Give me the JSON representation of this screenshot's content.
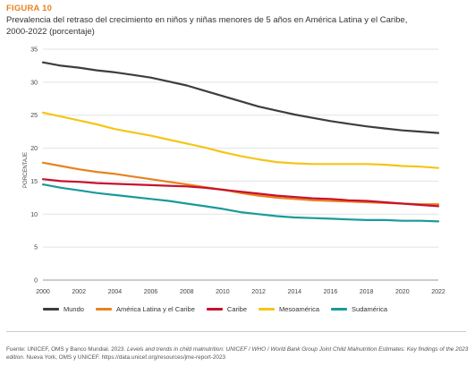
{
  "figure": {
    "label": "FIGURA 10",
    "title": "Prevalencia del retraso del crecimiento en niños y niñas menores de 5 años en América Latina y el Caribe, 2000-2022 (porcentaje)"
  },
  "source": {
    "prefix": "Fuente: UNICEF, OMS y Banco Mundial. 2023. ",
    "title_italic": "Levels and trends in child malnutrition: UNICEF / WHO / World Bank Group Joint Child Malnutrition Estimates: Key findings of the 2023 edition",
    "suffix": ". Nueva York, OMS y UNICEF. https://data.unicef.org/resources/jme-report-2023"
  },
  "chart_data": {
    "type": "line",
    "title": "",
    "xlabel": "",
    "ylabel": "PORCENTAJE",
    "xlim": [
      2000,
      2022
    ],
    "ylim": [
      0,
      35
    ],
    "x_ticks": [
      "2000",
      "2002",
      "2004",
      "2006",
      "2008",
      "2010",
      "2012",
      "2014",
      "2016",
      "2018",
      "2020",
      "2022"
    ],
    "y_ticks": [
      "0",
      "5",
      "10",
      "15",
      "20",
      "25",
      "30",
      "35"
    ],
    "grid": true,
    "legend_position": "bottom",
    "x": [
      2000,
      2001,
      2002,
      2003,
      2004,
      2005,
      2006,
      2007,
      2008,
      2009,
      2010,
      2011,
      2012,
      2013,
      2014,
      2015,
      2016,
      2017,
      2018,
      2019,
      2020,
      2021,
      2022
    ],
    "series": [
      {
        "name": "Mundo",
        "color": "#3d3d3d",
        "values": [
          33.0,
          32.5,
          32.2,
          31.8,
          31.5,
          31.1,
          30.7,
          30.1,
          29.5,
          28.7,
          27.9,
          27.1,
          26.3,
          25.7,
          25.1,
          24.6,
          24.1,
          23.7,
          23.3,
          23.0,
          22.7,
          22.5,
          22.3
        ]
      },
      {
        "name": "América Latina y el Caribe",
        "color": "#e8821e",
        "values": [
          17.8,
          17.3,
          16.8,
          16.4,
          16.1,
          15.7,
          15.3,
          14.9,
          14.5,
          14.1,
          13.7,
          13.2,
          12.8,
          12.5,
          12.3,
          12.1,
          12.0,
          11.9,
          11.8,
          11.7,
          11.6,
          11.5,
          11.5
        ]
      },
      {
        "name": "Caribe",
        "color": "#c8102e",
        "values": [
          15.3,
          15.0,
          14.9,
          14.7,
          14.6,
          14.5,
          14.4,
          14.3,
          14.2,
          14.0,
          13.7,
          13.4,
          13.1,
          12.8,
          12.6,
          12.4,
          12.3,
          12.1,
          12.0,
          11.8,
          11.6,
          11.4,
          11.2
        ]
      },
      {
        "name": "Mesoamérica",
        "color": "#f5c518",
        "values": [
          25.4,
          24.8,
          24.2,
          23.6,
          22.9,
          22.4,
          21.9,
          21.3,
          20.7,
          20.1,
          19.4,
          18.8,
          18.3,
          17.9,
          17.7,
          17.6,
          17.6,
          17.6,
          17.6,
          17.5,
          17.3,
          17.2,
          17.0
        ]
      },
      {
        "name": "Sudamérica",
        "color": "#1a9a9a",
        "values": [
          14.5,
          14.0,
          13.6,
          13.2,
          12.9,
          12.6,
          12.3,
          12.0,
          11.6,
          11.2,
          10.8,
          10.3,
          10.0,
          9.7,
          9.5,
          9.4,
          9.3,
          9.2,
          9.1,
          9.1,
          9.0,
          9.0,
          8.9
        ]
      }
    ]
  }
}
